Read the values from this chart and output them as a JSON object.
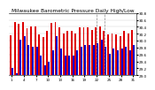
{
  "title": "Milwaukee Barometric Pressure Daily High/Low",
  "ylim": [
    29.0,
    30.8
  ],
  "yticks": [
    29.0,
    29.2,
    29.4,
    29.6,
    29.8,
    30.0,
    30.2,
    30.4,
    30.6,
    30.8
  ],
  "ytick_labels": [
    "29.0",
    "29.2",
    "29.4",
    "29.6",
    "29.8",
    "30.0",
    "30.2",
    "30.4",
    "30.6",
    "30.8"
  ],
  "highs": [
    30.15,
    30.55,
    30.5,
    30.55,
    30.35,
    30.42,
    30.4,
    30.18,
    30.1,
    30.28,
    30.52,
    30.55,
    30.38,
    30.22,
    30.28,
    30.28,
    30.22,
    30.38,
    30.38,
    30.38,
    30.32,
    30.38,
    30.42,
    30.28,
    30.18,
    30.22,
    30.18,
    30.12,
    30.28,
    30.22,
    30.32
  ],
  "lows": [
    29.2,
    29.05,
    30.02,
    30.12,
    29.88,
    29.82,
    29.82,
    29.58,
    29.28,
    29.38,
    29.72,
    30.12,
    29.78,
    29.58,
    29.58,
    29.58,
    29.72,
    29.82,
    29.88,
    29.88,
    29.88,
    29.92,
    30.02,
    29.82,
    29.62,
    29.78,
    29.72,
    29.78,
    29.82,
    29.72,
    29.88
  ],
  "high_color": "#dd0000",
  "low_color": "#0000cc",
  "bg_color": "#ffffff",
  "title_color": "#000000",
  "title_fontsize": 4.2,
  "tick_fontsize": 3.0,
  "bar_width": 0.42,
  "dashed_lines": [
    21,
    23
  ],
  "n_bars": 31
}
